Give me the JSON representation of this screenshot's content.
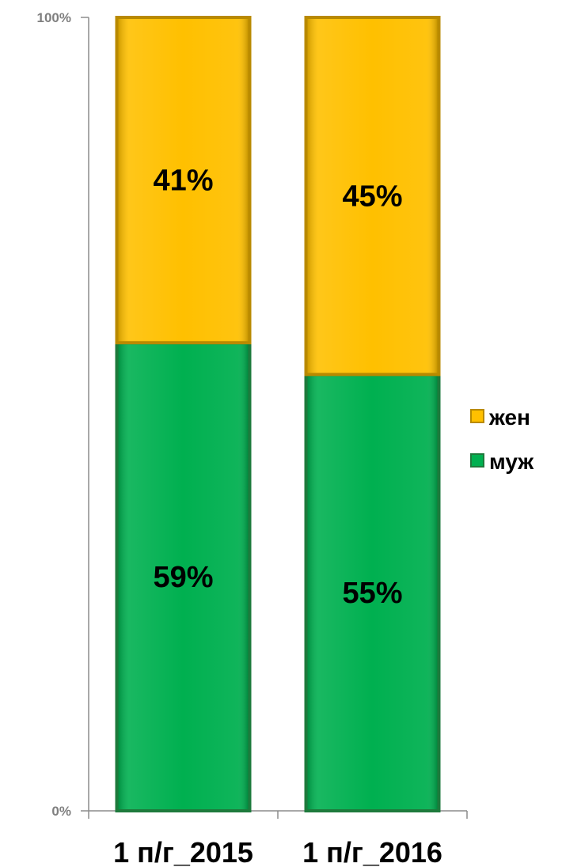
{
  "chart_data": {
    "type": "bar",
    "stacked": true,
    "percent": true,
    "categories": [
      "1 п/г_2015",
      "1 п/г_2016"
    ],
    "series": [
      {
        "name": "муж",
        "values": [
          59,
          55
        ],
        "labels": [
          "59%",
          "55%"
        ],
        "color": "#00b050",
        "edge": "#1e7a3c"
      },
      {
        "name": "жен",
        "values": [
          41,
          45
        ],
        "labels": [
          "41%",
          "45%"
        ],
        "color": "#ffc000",
        "edge": "#b98a00"
      }
    ],
    "yticks": [
      "0%",
      "100%"
    ],
    "ylim": [
      0,
      100
    ],
    "legend": {
      "position": "right",
      "order": [
        "жен",
        "муж"
      ]
    },
    "grid": false
  }
}
